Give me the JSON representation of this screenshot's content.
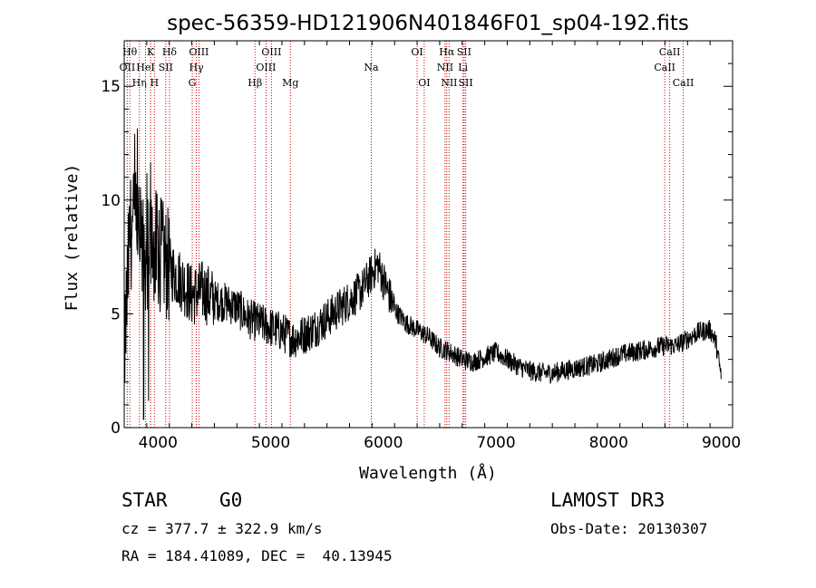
{
  "chart_data": {
    "type": "line",
    "title": "spec-56359-HD121906N401846F01_sp04-192.fits",
    "xlabel": "Wavelength (Å)",
    "ylabel": "Flux (relative)",
    "xlim": [
      3700,
      9100
    ],
    "ylim": [
      0,
      17
    ],
    "xticks": [
      4000,
      5000,
      6000,
      7000,
      8000,
      9000
    ],
    "yticks": [
      0,
      5,
      10,
      15
    ],
    "series_color": "#000000",
    "line_color": "#cc0000",
    "spectrum_anchors": {
      "x": [
        3700,
        3750,
        3800,
        3850,
        3900,
        3950,
        4000,
        4100,
        4200,
        4300,
        4400,
        4500,
        4600,
        4700,
        4800,
        4900,
        5000,
        5100,
        5200,
        5300,
        5400,
        5500,
        5600,
        5700,
        5800,
        5900,
        5950,
        6000,
        6100,
        6200,
        6300,
        6400,
        6500,
        6560,
        6600,
        6700,
        6800,
        6900,
        7000,
        7100,
        7200,
        7300,
        7400,
        7500,
        7600,
        7700,
        7800,
        7900,
        8000,
        8100,
        8200,
        8300,
        8400,
        8500,
        8600,
        8700,
        8800,
        8900,
        8950,
        9000
      ],
      "y": [
        3.0,
        8.5,
        9.0,
        8.0,
        7.5,
        8.0,
        7.8,
        7.0,
        6.5,
        5.8,
        6.0,
        5.6,
        5.5,
        5.3,
        4.8,
        4.6,
        4.4,
        4.2,
        3.9,
        4.1,
        4.4,
        4.8,
        5.2,
        5.6,
        6.0,
        6.8,
        7.2,
        6.5,
        5.2,
        4.6,
        4.3,
        4.0,
        3.5,
        3.4,
        3.3,
        3.0,
        2.9,
        3.1,
        3.3,
        3.0,
        2.7,
        2.5,
        2.4,
        2.4,
        2.5,
        2.6,
        2.7,
        2.8,
        3.0,
        3.2,
        3.3,
        3.4,
        3.5,
        3.6,
        3.6,
        3.9,
        4.2,
        4.3,
        3.8,
        2.2
      ]
    },
    "spectral_lines": [
      {
        "label": "OII",
        "wavelength": 3727,
        "row": 2
      },
      {
        "label": "Hθ",
        "wavelength": 3750,
        "row": 1
      },
      {
        "label": "Hη",
        "wavelength": 3835,
        "row": 3
      },
      {
        "label": "K",
        "wavelength": 3934,
        "row": 1
      },
      {
        "label": "HeI",
        "wavelength": 3889,
        "row": 2
      },
      {
        "label": "H",
        "wavelength": 3968,
        "row": 3
      },
      {
        "label": "SII",
        "wavelength": 4069,
        "row": 2
      },
      {
        "label": "Hδ",
        "wavelength": 4102,
        "row": 1
      },
      {
        "label": "G",
        "wavelength": 4304,
        "row": 3
      },
      {
        "label": "Hγ",
        "wavelength": 4340,
        "row": 2
      },
      {
        "label": "OIII",
        "wavelength": 4363,
        "row": 1
      },
      {
        "label": "Hβ",
        "wavelength": 4861,
        "row": 3
      },
      {
        "label": "OIII",
        "wavelength": 4959,
        "row": 2
      },
      {
        "label": "OIII",
        "wavelength": 5007,
        "row": 1
      },
      {
        "label": "Mg",
        "wavelength": 5175,
        "row": 3
      },
      {
        "label": "Na",
        "wavelength": 5893,
        "row": 2
      },
      {
        "label": "OI",
        "wavelength": 6300,
        "row": 1
      },
      {
        "label": "OI",
        "wavelength": 6363,
        "row": 3
      },
      {
        "label": "NII",
        "wavelength": 6548,
        "row": 2
      },
      {
        "label": "Hα",
        "wavelength": 6563,
        "row": 1
      },
      {
        "label": "NII",
        "wavelength": 6584,
        "row": 3
      },
      {
        "label": "Li",
        "wavelength": 6707,
        "row": 2
      },
      {
        "label": "SII",
        "wavelength": 6717,
        "row": 1
      },
      {
        "label": "SII",
        "wavelength": 6731,
        "row": 3
      },
      {
        "label": "CaII",
        "wavelength": 8498,
        "row": 2
      },
      {
        "label": "CaII",
        "wavelength": 8542,
        "row": 1
      },
      {
        "label": "CaII",
        "wavelength": 8662,
        "row": 3
      }
    ]
  },
  "info": {
    "object_class": "STAR",
    "subclass": "G0",
    "survey": "LAMOST DR3",
    "cz": "cz = 377.7 ± 322.9 km/s",
    "obs_date": "Obs-Date: 20130307",
    "coords": "RA = 184.41089, DEC =  40.13945"
  }
}
